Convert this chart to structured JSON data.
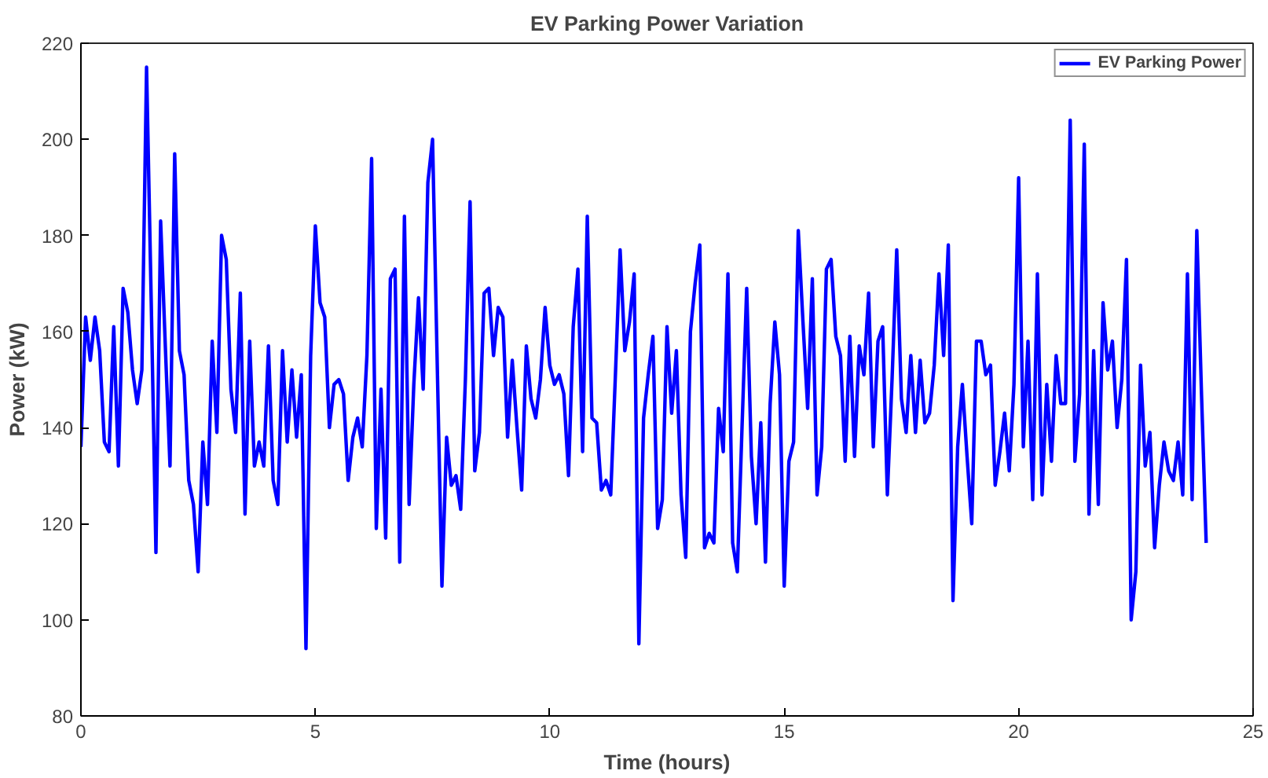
{
  "chart_data": {
    "type": "line",
    "title": "EV Parking Power Variation",
    "xlabel": "Time (hours)",
    "ylabel": "Power (kW)",
    "x": [
      0,
      0.1,
      0.2,
      0.3,
      0.4,
      0.5,
      0.6,
      0.7,
      0.8,
      0.9,
      1,
      1.1,
      1.2,
      1.3,
      1.4,
      1.5,
      1.6,
      1.7,
      1.8,
      1.9,
      2,
      2.1,
      2.2,
      2.3,
      2.4,
      2.5,
      2.6,
      2.7,
      2.8,
      2.9,
      3,
      3.1,
      3.2,
      3.3,
      3.4,
      3.5,
      3.6,
      3.7,
      3.8,
      3.9,
      4,
      4.1,
      4.2,
      4.3,
      4.4,
      4.5,
      4.6,
      4.7,
      4.8,
      4.9,
      5,
      5.1,
      5.2,
      5.3,
      5.4,
      5.5,
      5.6,
      5.7,
      5.8,
      5.9,
      6,
      6.1,
      6.2,
      6.3,
      6.4,
      6.5,
      6.6,
      6.7,
      6.8,
      6.9,
      7,
      7.1,
      7.2,
      7.3,
      7.4,
      7.5,
      7.6,
      7.7,
      7.8,
      7.9,
      8,
      8.1,
      8.2,
      8.3,
      8.4,
      8.5,
      8.6,
      8.7,
      8.8,
      8.9,
      9,
      9.1,
      9.2,
      9.3,
      9.4,
      9.5,
      9.6,
      9.7,
      9.8,
      9.9,
      10,
      10.1,
      10.2,
      10.3,
      10.4,
      10.5,
      10.6,
      10.7,
      10.8,
      10.9,
      11,
      11.1,
      11.2,
      11.3,
      11.4,
      11.5,
      11.6,
      11.7,
      11.8,
      11.9,
      12,
      12.1,
      12.2,
      12.3,
      12.4,
      12.5,
      12.6,
      12.7,
      12.8,
      12.9,
      13,
      13.1,
      13.2,
      13.3,
      13.4,
      13.5,
      13.6,
      13.7,
      13.8,
      13.9,
      14,
      14.1,
      14.2,
      14.3,
      14.4,
      14.5,
      14.6,
      14.7,
      14.8,
      14.9,
      15,
      15.1,
      15.2,
      15.3,
      15.4,
      15.5,
      15.6,
      15.7,
      15.8,
      15.9,
      16,
      16.1,
      16.2,
      16.3,
      16.4,
      16.5,
      16.6,
      16.7,
      16.8,
      16.9,
      17,
      17.1,
      17.2,
      17.3,
      17.4,
      17.5,
      17.6,
      17.7,
      17.8,
      17.9,
      18,
      18.1,
      18.2,
      18.3,
      18.4,
      18.5,
      18.6,
      18.7,
      18.8,
      18.9,
      19,
      19.1,
      19.2,
      19.3,
      19.4,
      19.5,
      19.6,
      19.7,
      19.8,
      19.9,
      20,
      20.1,
      20.2,
      20.3,
      20.4,
      20.5,
      20.6,
      20.7,
      20.8,
      20.9,
      21,
      21.1,
      21.2,
      21.3,
      21.4,
      21.5,
      21.6,
      21.7,
      21.8,
      21.9,
      22,
      22.1,
      22.2,
      22.3,
      22.4,
      22.5,
      22.6,
      22.7,
      22.8,
      22.9,
      23,
      23.1,
      23.2,
      23.3,
      23.4,
      23.5,
      23.6,
      23.7,
      23.8,
      23.9,
      24
    ],
    "series": [
      {
        "name": "EV Parking Power",
        "color": "#0000ff",
        "values": [
          136,
          163,
          154,
          163,
          156,
          137,
          135,
          161,
          132,
          169,
          164,
          152,
          145,
          152,
          215,
          166,
          114,
          183,
          157,
          132,
          197,
          156,
          151,
          129,
          124,
          110,
          137,
          124,
          158,
          139,
          180,
          175,
          148,
          139,
          168,
          122,
          158,
          132,
          137,
          132,
          157,
          129,
          124,
          156,
          137,
          152,
          138,
          151,
          94,
          155,
          182,
          166,
          163,
          140,
          149,
          150,
          147,
          129,
          138,
          142,
          136,
          155,
          196,
          119,
          148,
          117,
          171,
          173,
          112,
          184,
          124,
          149,
          167,
          148,
          191,
          200,
          153,
          107,
          138,
          128,
          130,
          123,
          150,
          187,
          131,
          139,
          168,
          169,
          155,
          165,
          163,
          138,
          154,
          140,
          127,
          157,
          146,
          142,
          150,
          165,
          153,
          149,
          151,
          147,
          130,
          161,
          173,
          135,
          184,
          142,
          141,
          127,
          129,
          126,
          151,
          177,
          156,
          162,
          172,
          95,
          142,
          151,
          159,
          119,
          125,
          161,
          143,
          156,
          126,
          113,
          160,
          170,
          178,
          115,
          118,
          116,
          144,
          135,
          172,
          116,
          110,
          140,
          169,
          134,
          120,
          141,
          112,
          145,
          162,
          151,
          107,
          133,
          137,
          181,
          162,
          144,
          171,
          126,
          136,
          173,
          175,
          159,
          155,
          133,
          159,
          134,
          157,
          151,
          168,
          136,
          158,
          161,
          126,
          150,
          177,
          146,
          139,
          155,
          139,
          154,
          141,
          143,
          153,
          172,
          155,
          178,
          104,
          136,
          149,
          134,
          120,
          158,
          158,
          151,
          153,
          128,
          135,
          143,
          131,
          149,
          192,
          136,
          158,
          125,
          172,
          126,
          149,
          133,
          155,
          145,
          145,
          204,
          133,
          147,
          199,
          122,
          156,
          124,
          166,
          152,
          158,
          140,
          150,
          175,
          100,
          110,
          153,
          132,
          139,
          115,
          128,
          137,
          131,
          129,
          137,
          126,
          172,
          125,
          181,
          147,
          116
        ]
      }
    ],
    "xlim": [
      0,
      25
    ],
    "xticks": [
      0,
      5,
      10,
      15,
      20,
      25
    ],
    "ylim": [
      80,
      220
    ],
    "yticks": [
      80,
      100,
      120,
      140,
      160,
      180,
      200,
      220
    ],
    "grid": false,
    "legend": "top right",
    "marker": "none",
    "line_style": "solid"
  }
}
